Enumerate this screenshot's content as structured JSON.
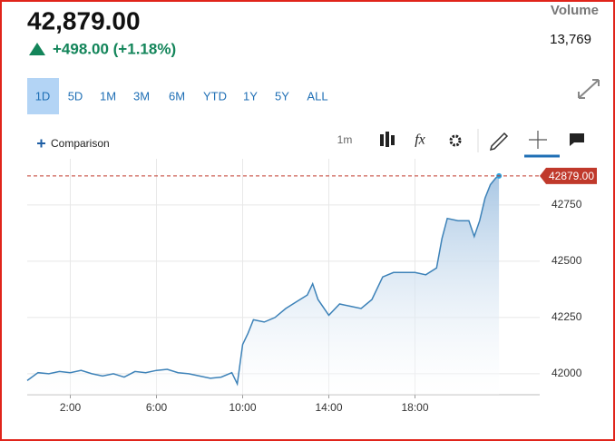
{
  "header": {
    "price": "42,879.00",
    "change": "+498.00 (+1.18%)",
    "volume_label": "Volume",
    "volume": "13,769"
  },
  "tabs": [
    "1D",
    "5D",
    "1M",
    "3M",
    "6M",
    "YTD",
    "1Y",
    "5Y",
    "ALL"
  ],
  "selected_tab": 0,
  "toolbar": {
    "comparison": "Comparison",
    "interval": "1m",
    "function_icon": "fx"
  },
  "chart_data": {
    "type": "area",
    "x": [
      0,
      0.5,
      1,
      1.5,
      2,
      2.5,
      3,
      3.5,
      4,
      4.5,
      5,
      5.5,
      6,
      6.5,
      7,
      7.5,
      8,
      8.5,
      9,
      9.5,
      9.75,
      10,
      10.25,
      10.5,
      11,
      11.5,
      12,
      12.5,
      13,
      13.25,
      13.5,
      14,
      14.5,
      15,
      15.5,
      16,
      16.5,
      17,
      17.5,
      18,
      18.5,
      19,
      19.25,
      19.5,
      20,
      20.5,
      20.75,
      21,
      21.25,
      21.5,
      21.75,
      21.9
    ],
    "series": [
      {
        "color": "#3d82b8",
        "values": [
          41970,
          42005,
          42000,
          42010,
          42005,
          42015,
          42000,
          41990,
          42000,
          41985,
          42010,
          42005,
          42015,
          42020,
          42005,
          42000,
          41990,
          41980,
          41985,
          42005,
          41955,
          42130,
          42180,
          42240,
          42230,
          42250,
          42290,
          42320,
          42350,
          42400,
          42330,
          42260,
          42310,
          42300,
          42290,
          42330,
          42430,
          42450,
          42450,
          42450,
          42440,
          42470,
          42600,
          42690,
          42680,
          42680,
          42610,
          42680,
          42780,
          42840,
          42870,
          42879
        ]
      }
    ],
    "xlim": [
      0,
      24
    ],
    "xticks": [
      {
        "value": 2,
        "label": "2:00"
      },
      {
        "value": 6,
        "label": "6:00"
      },
      {
        "value": 10,
        "label": "10:00"
      },
      {
        "value": 14,
        "label": "14:00"
      },
      {
        "value": 18,
        "label": "18:00"
      }
    ],
    "ylim": [
      41907,
      42955
    ],
    "yticks": [
      42000,
      42250,
      42500,
      42750
    ],
    "grid": true,
    "reference_line": {
      "value": 42879,
      "label": "42879.00",
      "color": "#c0392b"
    }
  }
}
